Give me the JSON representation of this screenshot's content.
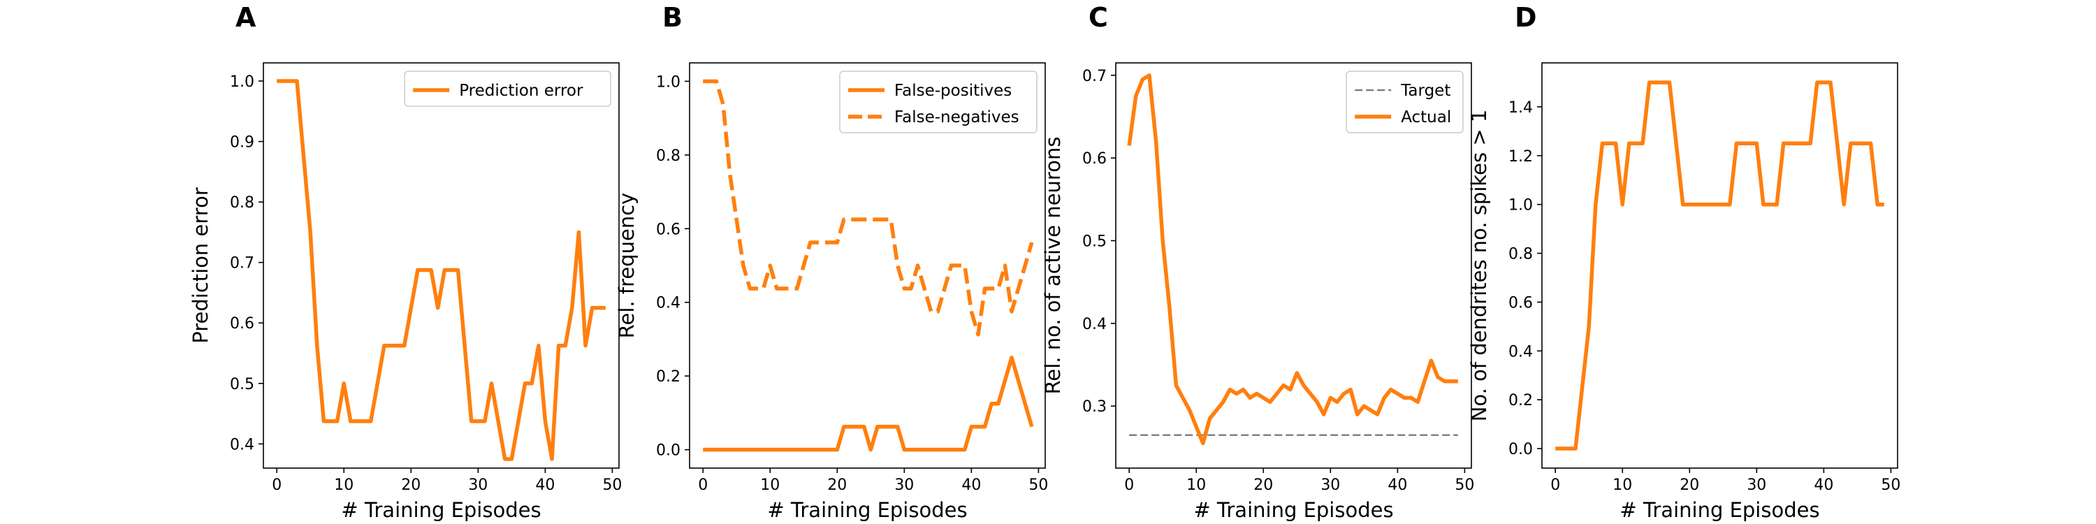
{
  "colors": {
    "series": "#ff7f0e",
    "target": "#7f7f8c",
    "axis": "#000000",
    "legend_border": "#cccccc"
  },
  "chart_data": [
    {
      "type": "line",
      "panel": "A",
      "xlabel": "# Training Episodes",
      "ylabel": "Prediction error",
      "xlim": [
        -2,
        51
      ],
      "ylim": [
        0.36,
        1.03
      ],
      "xticks": [
        0,
        10,
        20,
        30,
        40,
        50
      ],
      "yticks": [
        0.4,
        0.5,
        0.6,
        0.7,
        0.8,
        0.9,
        1.0
      ],
      "ytick_decimals": 1,
      "legend_position": "upper right",
      "series": [
        {
          "name": "Prediction error",
          "style": "solid",
          "x": [
            0,
            1,
            2,
            3,
            4,
            5,
            6,
            7,
            8,
            9,
            10,
            11,
            12,
            13,
            14,
            15,
            16,
            17,
            18,
            19,
            20,
            21,
            22,
            23,
            24,
            25,
            26,
            27,
            28,
            29,
            30,
            31,
            32,
            33,
            34,
            35,
            36,
            37,
            38,
            39,
            40,
            41,
            42,
            43,
            44,
            45,
            46,
            47,
            48,
            49
          ],
          "y": [
            1.0,
            1.0,
            1.0,
            1.0,
            0.875,
            0.75,
            0.5625,
            0.4375,
            0.4375,
            0.4375,
            0.5,
            0.4375,
            0.4375,
            0.4375,
            0.4375,
            0.5,
            0.5625,
            0.5625,
            0.5625,
            0.5625,
            0.625,
            0.6875,
            0.6875,
            0.6875,
            0.625,
            0.6875,
            0.6875,
            0.6875,
            0.5625,
            0.4375,
            0.4375,
            0.4375,
            0.5,
            0.4375,
            0.375,
            0.375,
            0.4375,
            0.5,
            0.5,
            0.5625,
            0.4375,
            0.375,
            0.5625,
            0.5625,
            0.625,
            0.75,
            0.5625,
            0.625,
            0.625,
            0.625
          ]
        }
      ]
    },
    {
      "type": "line",
      "panel": "B",
      "xlabel": "# Training Episodes",
      "ylabel": "Rel. frequency",
      "xlim": [
        -2,
        51
      ],
      "ylim": [
        -0.05,
        1.05
      ],
      "xticks": [
        0,
        10,
        20,
        30,
        40,
        50
      ],
      "yticks": [
        0.0,
        0.2,
        0.4,
        0.6,
        0.8,
        1.0
      ],
      "ytick_decimals": 1,
      "legend_position": "upper right",
      "series": [
        {
          "name": "False-positives",
          "style": "solid",
          "x": [
            0,
            1,
            2,
            3,
            4,
            5,
            6,
            7,
            8,
            9,
            10,
            11,
            12,
            13,
            14,
            15,
            16,
            17,
            18,
            19,
            20,
            21,
            22,
            23,
            24,
            25,
            26,
            27,
            28,
            29,
            30,
            31,
            32,
            33,
            34,
            35,
            36,
            37,
            38,
            39,
            40,
            41,
            42,
            43,
            44,
            45,
            46,
            47,
            48,
            49
          ],
          "y": [
            0,
            0,
            0,
            0,
            0,
            0,
            0,
            0,
            0,
            0,
            0,
            0,
            0,
            0,
            0,
            0,
            0,
            0,
            0,
            0,
            0,
            0.0625,
            0.0625,
            0.0625,
            0.0625,
            0,
            0.0625,
            0.0625,
            0.0625,
            0.0625,
            0,
            0,
            0,
            0,
            0,
            0,
            0,
            0,
            0,
            0,
            0.0625,
            0.0625,
            0.0625,
            0.125,
            0.125,
            0.1875,
            0.25,
            0.1875,
            0.125,
            0.0625
          ]
        },
        {
          "name": "False-negatives",
          "style": "dashed",
          "x": [
            0,
            1,
            2,
            3,
            4,
            5,
            6,
            7,
            8,
            9,
            10,
            11,
            12,
            13,
            14,
            15,
            16,
            17,
            18,
            19,
            20,
            21,
            22,
            23,
            24,
            25,
            26,
            27,
            28,
            29,
            30,
            31,
            32,
            33,
            34,
            35,
            36,
            37,
            38,
            39,
            40,
            41,
            42,
            43,
            44,
            45,
            46,
            47,
            48,
            49
          ],
          "y": [
            1.0,
            1.0,
            1.0,
            0.9375,
            0.75,
            0.625,
            0.5,
            0.4375,
            0.4375,
            0.4375,
            0.5,
            0.4375,
            0.4375,
            0.4375,
            0.4375,
            0.5,
            0.5625,
            0.5625,
            0.5625,
            0.5625,
            0.5625,
            0.625,
            0.625,
            0.625,
            0.625,
            0.625,
            0.625,
            0.625,
            0.625,
            0.5,
            0.4375,
            0.4375,
            0.5,
            0.4375,
            0.375,
            0.375,
            0.4375,
            0.5,
            0.5,
            0.5,
            0.375,
            0.3125,
            0.4375,
            0.4375,
            0.4375,
            0.5,
            0.375,
            0.4375,
            0.5,
            0.5625
          ]
        }
      ]
    },
    {
      "type": "line",
      "panel": "C",
      "xlabel": "# Training Episodes",
      "ylabel": "Rel. no. of active neurons",
      "xlim": [
        -2,
        51
      ],
      "ylim": [
        0.225,
        0.715
      ],
      "xticks": [
        0,
        10,
        20,
        30,
        40,
        50
      ],
      "yticks": [
        0.3,
        0.4,
        0.5,
        0.6,
        0.7
      ],
      "ytick_decimals": 1,
      "legend_position": "upper right",
      "series": [
        {
          "name": "Target",
          "style": "dashed-thin",
          "x": [
            0,
            49
          ],
          "y": [
            0.265,
            0.265
          ]
        },
        {
          "name": "Actual",
          "style": "solid",
          "x": [
            0,
            1,
            2,
            3,
            4,
            5,
            6,
            7,
            8,
            9,
            10,
            11,
            12,
            13,
            14,
            15,
            16,
            17,
            18,
            19,
            20,
            21,
            22,
            23,
            24,
            25,
            26,
            27,
            28,
            29,
            30,
            31,
            32,
            33,
            34,
            35,
            36,
            37,
            38,
            39,
            40,
            41,
            42,
            43,
            44,
            45,
            46,
            47,
            48,
            49
          ],
          "y": [
            0.615,
            0.675,
            0.695,
            0.7,
            0.62,
            0.5,
            0.42,
            0.325,
            0.31,
            0.295,
            0.275,
            0.255,
            0.285,
            0.295,
            0.305,
            0.32,
            0.315,
            0.32,
            0.31,
            0.315,
            0.31,
            0.305,
            0.315,
            0.325,
            0.32,
            0.34,
            0.325,
            0.315,
            0.305,
            0.29,
            0.31,
            0.305,
            0.315,
            0.32,
            0.29,
            0.3,
            0.295,
            0.29,
            0.31,
            0.32,
            0.315,
            0.31,
            0.31,
            0.305,
            0.33,
            0.355,
            0.335,
            0.33,
            0.33,
            0.33
          ]
        }
      ]
    },
    {
      "type": "line",
      "panel": "D",
      "xlabel": "# Training Episodes",
      "ylabel": "No. of dendrites no. spikes > 1",
      "xlim": [
        -2,
        51
      ],
      "ylim": [
        -0.08,
        1.58
      ],
      "xticks": [
        0,
        10,
        20,
        30,
        40,
        50
      ],
      "yticks": [
        0.0,
        0.2,
        0.4,
        0.6,
        0.8,
        1.0,
        1.2,
        1.4
      ],
      "ytick_decimals": 1,
      "legend_position": "",
      "series": [
        {
          "name": "",
          "style": "solid",
          "x": [
            0,
            1,
            2,
            3,
            4,
            5,
            6,
            7,
            8,
            9,
            10,
            11,
            12,
            13,
            14,
            15,
            16,
            17,
            18,
            19,
            20,
            21,
            22,
            23,
            24,
            25,
            26,
            27,
            28,
            29,
            30,
            31,
            32,
            33,
            34,
            35,
            36,
            37,
            38,
            39,
            40,
            41,
            42,
            43,
            44,
            45,
            46,
            47,
            48,
            49
          ],
          "y": [
            0,
            0,
            0,
            0,
            0.25,
            0.5,
            1.0,
            1.25,
            1.25,
            1.25,
            1.0,
            1.25,
            1.25,
            1.25,
            1.5,
            1.5,
            1.5,
            1.5,
            1.25,
            1.0,
            1.0,
            1.0,
            1.0,
            1.0,
            1.0,
            1.0,
            1.0,
            1.25,
            1.25,
            1.25,
            1.25,
            1.0,
            1.0,
            1.0,
            1.25,
            1.25,
            1.25,
            1.25,
            1.25,
            1.5,
            1.5,
            1.5,
            1.25,
            1.0,
            1.25,
            1.25,
            1.25,
            1.25,
            1.0,
            1.0
          ]
        }
      ]
    }
  ]
}
